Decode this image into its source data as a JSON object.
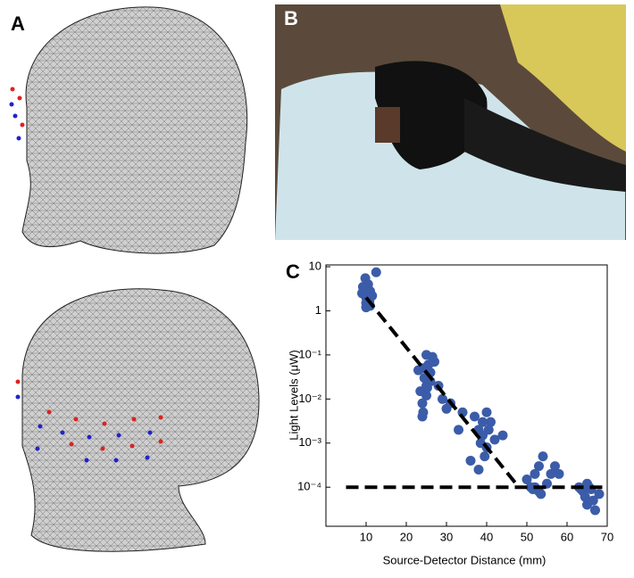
{
  "panels": {
    "a_label": "A",
    "b_label": "B",
    "c_label": "C"
  },
  "chart_data": {
    "type": "scatter",
    "x_label": "Source-Detector Distance (mm)",
    "y_label": "Light Levels (μW)",
    "yscale": "log",
    "xlim": [
      0,
      70
    ],
    "xticks": [
      10,
      20,
      30,
      40,
      50,
      60,
      70
    ],
    "ylim": [
      1.3e-05,
      11
    ],
    "yticks": [
      10,
      1,
      {
        "value": 0.1,
        "label": "10⁻¹"
      },
      {
        "value": 0.01,
        "label": "10⁻²"
      },
      {
        "value": 0.001,
        "label": "10⁻³"
      },
      {
        "value": 0.0001,
        "label": "10⁻⁴"
      }
    ],
    "series": [
      {
        "color": "#3b5ca8",
        "x": [
          9,
          9.5,
          10,
          10,
          10.5,
          10,
          11,
          9.8,
          10.2,
          11.5,
          12.5,
          9.2,
          10.8,
          11,
          24,
          24.5,
          25,
          25,
          25.5,
          26,
          23.5,
          24,
          25,
          26,
          27,
          24,
          25.5,
          23,
          26.5,
          24.2,
          25.2,
          28,
          29,
          30,
          31,
          33,
          34,
          37,
          38,
          38.5,
          39,
          39,
          40,
          40,
          41,
          39.5,
          38,
          40.5,
          42,
          44,
          36,
          50,
          51,
          52,
          53,
          53,
          54,
          55,
          56,
          52,
          51.5,
          53.5,
          57,
          58,
          63,
          64,
          64.5,
          65,
          65,
          66,
          66.5,
          67,
          68,
          63.5,
          65.5
        ],
        "values": [
          2.5,
          3,
          2,
          1.5,
          4,
          1.2,
          2.8,
          5.5,
          1.8,
          2.2,
          7.5,
          3.5,
          1.6,
          1.3,
          0.05,
          0.03,
          0.02,
          0.1,
          0.06,
          0.04,
          0.015,
          0.008,
          0.012,
          0.025,
          0.07,
          0.004,
          0.035,
          0.045,
          0.09,
          0.005,
          0.018,
          0.02,
          0.01,
          0.006,
          0.008,
          0.002,
          0.005,
          0.004,
          0.002,
          0.001,
          0.003,
          0.0015,
          0.005,
          0.0008,
          0.003,
          0.0005,
          0.00025,
          0.002,
          0.0012,
          0.0015,
          0.0004,
          0.00015,
          0.0001,
          0.0002,
          0.0003,
          8e-05,
          0.0005,
          0.00012,
          0.0002,
          0.0001,
          9e-05,
          7e-05,
          0.0003,
          0.0002,
          0.0001,
          8e-05,
          6e-05,
          0.00012,
          4e-05,
          9e-05,
          5e-05,
          3e-05,
          7e-05,
          9e-05,
          0.0001
        ]
      }
    ],
    "lines": [
      {
        "color": "#000000",
        "x": [
          10,
          48
        ],
        "values": [
          2,
          0.0001
        ]
      },
      {
        "color": "#000000",
        "x": [
          5,
          70
        ],
        "values": [
          0.0001,
          0.0001
        ]
      }
    ]
  }
}
